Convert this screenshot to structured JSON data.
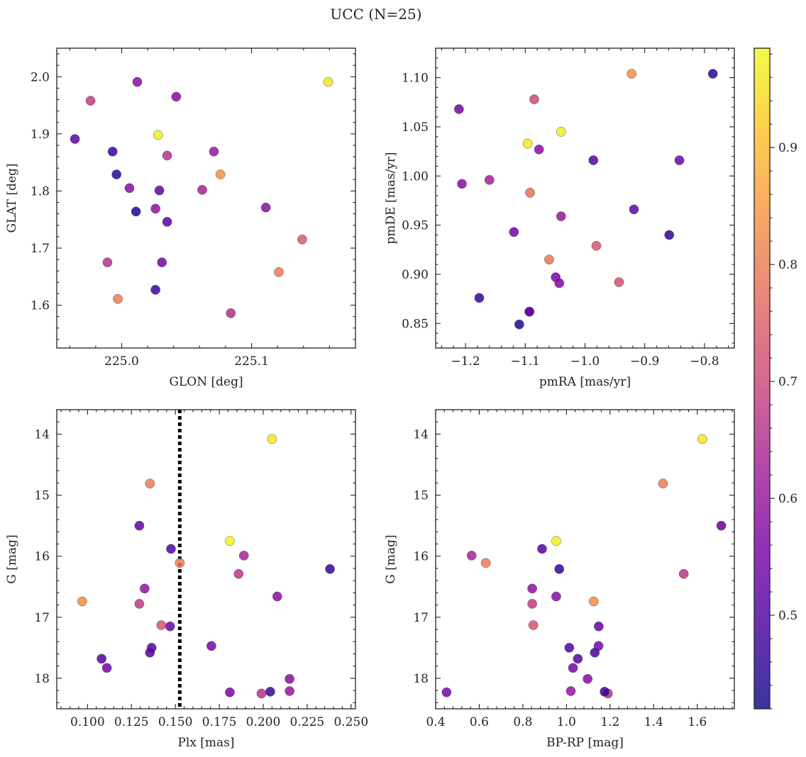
{
  "chart_data": {
    "title": "UCC (N=25)",
    "colorbar": {
      "colormap": "plasma",
      "range": [
        0.42,
        0.985
      ],
      "ticks": [
        0.5,
        0.6,
        0.7,
        0.8,
        0.9
      ],
      "tick_labels": [
        "0.5",
        "0.6",
        "0.7",
        "0.8",
        "0.9"
      ]
    },
    "panels": [
      {
        "type": "scatter",
        "xlabel": "GLON [deg]",
        "ylabel": "GLAT [deg]",
        "xlim": [
          224.95,
          225.18
        ],
        "ylim": [
          1.525,
          2.05
        ],
        "y_inverted": false,
        "xticks": [
          225.0,
          225.1
        ],
        "xtick_labels": [
          "225.0",
          "225.1"
        ],
        "yticks": [
          1.6,
          1.7,
          1.8,
          1.9,
          2.0
        ],
        "ytick_labels": [
          "1.6",
          "1.7",
          "1.8",
          "1.9",
          "2.0"
        ],
        "points": [
          {
            "x": 225.012,
            "y": 1.991,
            "c": 0.58
          },
          {
            "x": 225.159,
            "y": 1.991,
            "c": 0.96
          },
          {
            "x": 224.976,
            "y": 1.958,
            "c": 0.68
          },
          {
            "x": 225.042,
            "y": 1.965,
            "c": 0.58
          },
          {
            "x": 224.964,
            "y": 1.891,
            "c": 0.52
          },
          {
            "x": 225.028,
            "y": 1.898,
            "c": 0.97
          },
          {
            "x": 224.993,
            "y": 1.869,
            "c": 0.47
          },
          {
            "x": 225.035,
            "y": 1.862,
            "c": 0.66
          },
          {
            "x": 225.071,
            "y": 1.869,
            "c": 0.6
          },
          {
            "x": 224.996,
            "y": 1.829,
            "c": 0.45
          },
          {
            "x": 225.076,
            "y": 1.829,
            "c": 0.84
          },
          {
            "x": 225.006,
            "y": 1.805,
            "c": 0.58
          },
          {
            "x": 225.029,
            "y": 1.801,
            "c": 0.52
          },
          {
            "x": 225.062,
            "y": 1.802,
            "c": 0.63
          },
          {
            "x": 225.011,
            "y": 1.764,
            "c": 0.44
          },
          {
            "x": 225.026,
            "y": 1.769,
            "c": 0.59
          },
          {
            "x": 225.035,
            "y": 1.746,
            "c": 0.5
          },
          {
            "x": 225.111,
            "y": 1.771,
            "c": 0.58
          },
          {
            "x": 225.139,
            "y": 1.715,
            "c": 0.74
          },
          {
            "x": 224.989,
            "y": 1.675,
            "c": 0.66
          },
          {
            "x": 225.031,
            "y": 1.675,
            "c": 0.54
          },
          {
            "x": 225.121,
            "y": 1.658,
            "c": 0.8
          },
          {
            "x": 224.997,
            "y": 1.611,
            "c": 0.8
          },
          {
            "x": 225.026,
            "y": 1.627,
            "c": 0.47
          },
          {
            "x": 225.084,
            "y": 1.586,
            "c": 0.65
          }
        ]
      },
      {
        "type": "scatter",
        "xlabel": "pmRA [mas/yr]",
        "ylabel": "pmDE [mas/yr]",
        "xlim": [
          -1.25,
          -0.75
        ],
        "ylim": [
          0.825,
          1.13
        ],
        "y_inverted": false,
        "xticks": [
          -1.2,
          -1.1,
          -1.0,
          -0.9,
          -0.8
        ],
        "xtick_labels": [
          "−1.2",
          "−1.1",
          "−1.0",
          "−0.9",
          "−0.8"
        ],
        "yticks": [
          0.85,
          0.9,
          0.95,
          1.0,
          1.05,
          1.1
        ],
        "ytick_labels": [
          "0.85",
          "0.90",
          "0.95",
          "1.00",
          "1.05",
          "1.10"
        ],
        "points": [
          {
            "x": -0.922,
            "y": 1.104,
            "c": 0.83
          },
          {
            "x": -0.786,
            "y": 1.104,
            "c": 0.46
          },
          {
            "x": -1.085,
            "y": 1.078,
            "c": 0.7
          },
          {
            "x": -1.211,
            "y": 1.068,
            "c": 0.55
          },
          {
            "x": -1.04,
            "y": 1.045,
            "c": 0.97
          },
          {
            "x": -1.096,
            "y": 1.033,
            "c": 0.96
          },
          {
            "x": -1.077,
            "y": 1.027,
            "c": 0.58
          },
          {
            "x": -0.986,
            "y": 1.016,
            "c": 0.5
          },
          {
            "x": -0.842,
            "y": 1.016,
            "c": 0.54
          },
          {
            "x": -1.16,
            "y": 0.996,
            "c": 0.62
          },
          {
            "x": -1.206,
            "y": 0.992,
            "c": 0.58
          },
          {
            "x": -1.092,
            "y": 0.983,
            "c": 0.78
          },
          {
            "x": -1.04,
            "y": 0.959,
            "c": 0.6
          },
          {
            "x": -0.918,
            "y": 0.966,
            "c": 0.52
          },
          {
            "x": -1.119,
            "y": 0.943,
            "c": 0.54
          },
          {
            "x": -0.859,
            "y": 0.94,
            "c": 0.46
          },
          {
            "x": -1.06,
            "y": 0.915,
            "c": 0.79
          },
          {
            "x": -0.981,
            "y": 0.929,
            "c": 0.73
          },
          {
            "x": -1.049,
            "y": 0.897,
            "c": 0.56
          },
          {
            "x": -1.043,
            "y": 0.891,
            "c": 0.57
          },
          {
            "x": -0.943,
            "y": 0.892,
            "c": 0.72
          },
          {
            "x": -1.177,
            "y": 0.876,
            "c": 0.47
          },
          {
            "x": -1.093,
            "y": 0.862,
            "c": 0.57
          },
          {
            "x": -1.093,
            "y": 0.862,
            "c": 0.52
          },
          {
            "x": -1.11,
            "y": 0.849,
            "c": 0.44
          }
        ]
      },
      {
        "type": "scatter",
        "xlabel": "Plx [mas]",
        "ylabel": "G [mag]",
        "xlim": [
          0.0825,
          0.2525
        ],
        "ylim": [
          13.6,
          18.5
        ],
        "y_inverted": true,
        "xticks": [
          0.1,
          0.125,
          0.15,
          0.175,
          0.2,
          0.225,
          0.25
        ],
        "xtick_labels": [
          "0.100",
          "0.125",
          "0.150",
          "0.175",
          "0.200",
          "0.225",
          "0.250"
        ],
        "yticks": [
          14,
          15,
          16,
          17,
          18
        ],
        "ytick_labels": [
          "14",
          "15",
          "16",
          "17",
          "18"
        ],
        "vline": {
          "x": 0.1525,
          "style": "dotted",
          "color": "#000000"
        },
        "points": [
          {
            "x": 0.205,
            "y": 14.08,
            "c": 0.96
          },
          {
            "x": 0.1355,
            "y": 14.81,
            "c": 0.8
          },
          {
            "x": 0.1295,
            "y": 15.5,
            "c": 0.52
          },
          {
            "x": 0.181,
            "y": 15.75,
            "c": 0.97
          },
          {
            "x": 0.1475,
            "y": 15.88,
            "c": 0.5
          },
          {
            "x": 0.189,
            "y": 15.99,
            "c": 0.63
          },
          {
            "x": 0.1525,
            "y": 16.11,
            "c": 0.8
          },
          {
            "x": 0.238,
            "y": 16.21,
            "c": 0.47
          },
          {
            "x": 0.186,
            "y": 16.29,
            "c": 0.67
          },
          {
            "x": 0.1325,
            "y": 16.53,
            "c": 0.59
          },
          {
            "x": 0.208,
            "y": 16.66,
            "c": 0.58
          },
          {
            "x": 0.097,
            "y": 16.74,
            "c": 0.83
          },
          {
            "x": 0.1295,
            "y": 16.78,
            "c": 0.68
          },
          {
            "x": 0.142,
            "y": 17.13,
            "c": 0.73
          },
          {
            "x": 0.147,
            "y": 17.15,
            "c": 0.53
          },
          {
            "x": 0.1705,
            "y": 17.47,
            "c": 0.55
          },
          {
            "x": 0.1365,
            "y": 17.5,
            "c": 0.5
          },
          {
            "x": 0.1355,
            "y": 17.58,
            "c": 0.5
          },
          {
            "x": 0.108,
            "y": 17.68,
            "c": 0.5
          },
          {
            "x": 0.111,
            "y": 17.83,
            "c": 0.55
          },
          {
            "x": 0.215,
            "y": 18.01,
            "c": 0.58
          },
          {
            "x": 0.181,
            "y": 18.23,
            "c": 0.55
          },
          {
            "x": 0.199,
            "y": 18.25,
            "c": 0.66
          },
          {
            "x": 0.204,
            "y": 18.22,
            "c": 0.47
          },
          {
            "x": 0.215,
            "y": 18.21,
            "c": 0.6
          }
        ]
      },
      {
        "type": "scatter",
        "xlabel": "BP-RP [mag]",
        "ylabel": "G [mag]",
        "xlim": [
          0.4,
          1.77
        ],
        "ylim": [
          13.6,
          18.5
        ],
        "y_inverted": true,
        "xticks": [
          0.4,
          0.6,
          0.8,
          1.0,
          1.2,
          1.4,
          1.6
        ],
        "xtick_labels": [
          "0.4",
          "0.6",
          "0.8",
          "1.0",
          "1.2",
          "1.4",
          "1.6"
        ],
        "yticks": [
          14,
          15,
          16,
          17,
          18
        ],
        "ytick_labels": [
          "14",
          "15",
          "16",
          "17",
          "18"
        ],
        "points": [
          {
            "x": 1.623,
            "y": 14.08,
            "c": 0.96
          },
          {
            "x": 1.443,
            "y": 14.81,
            "c": 0.8
          },
          {
            "x": 1.71,
            "y": 15.5,
            "c": 0.52
          },
          {
            "x": 0.953,
            "y": 15.75,
            "c": 0.97
          },
          {
            "x": 0.888,
            "y": 15.88,
            "c": 0.5
          },
          {
            "x": 0.565,
            "y": 15.99,
            "c": 0.63
          },
          {
            "x": 0.63,
            "y": 16.11,
            "c": 0.8
          },
          {
            "x": 0.967,
            "y": 16.21,
            "c": 0.47
          },
          {
            "x": 1.538,
            "y": 16.29,
            "c": 0.67
          },
          {
            "x": 0.843,
            "y": 16.53,
            "c": 0.59
          },
          {
            "x": 0.953,
            "y": 16.66,
            "c": 0.58
          },
          {
            "x": 1.125,
            "y": 16.74,
            "c": 0.83
          },
          {
            "x": 0.843,
            "y": 16.78,
            "c": 0.68
          },
          {
            "x": 0.848,
            "y": 17.13,
            "c": 0.73
          },
          {
            "x": 1.148,
            "y": 17.15,
            "c": 0.53
          },
          {
            "x": 1.147,
            "y": 17.47,
            "c": 0.55
          },
          {
            "x": 1.013,
            "y": 17.5,
            "c": 0.5
          },
          {
            "x": 1.13,
            "y": 17.58,
            "c": 0.5
          },
          {
            "x": 1.052,
            "y": 17.68,
            "c": 0.5
          },
          {
            "x": 1.03,
            "y": 17.83,
            "c": 0.55
          },
          {
            "x": 1.097,
            "y": 18.01,
            "c": 0.58
          },
          {
            "x": 0.45,
            "y": 18.23,
            "c": 0.55
          },
          {
            "x": 1.19,
            "y": 18.25,
            "c": 0.66
          },
          {
            "x": 1.175,
            "y": 18.22,
            "c": 0.47
          },
          {
            "x": 1.02,
            "y": 18.21,
            "c": 0.6
          }
        ]
      }
    ]
  }
}
